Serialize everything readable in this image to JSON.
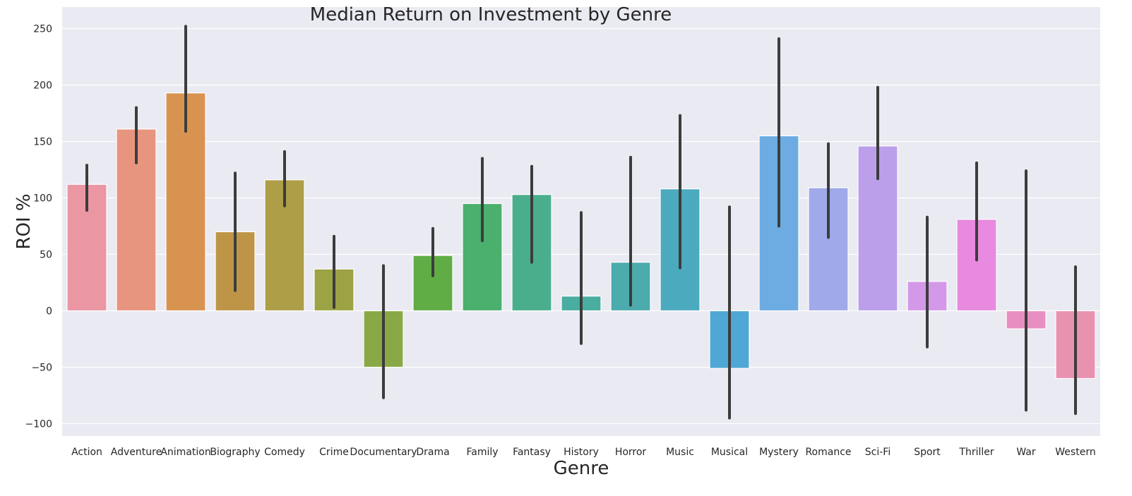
{
  "chart_data": {
    "type": "bar",
    "title": "Median Return on Investment by Genre",
    "xlabel": "Genre",
    "ylabel": "ROI %",
    "ylim": [
      -112,
      270
    ],
    "yticks": [
      250,
      200,
      150,
      100,
      50,
      0,
      -50,
      -100
    ],
    "grid": true,
    "legend": "none",
    "categories": [
      "Action",
      "Adventure",
      "Animation",
      "Biography",
      "Comedy",
      "Crime",
      "Documentary",
      "Drama",
      "Family",
      "Fantasy",
      "History",
      "Horror",
      "Music",
      "Musical",
      "Mystery",
      "Romance",
      "Sci-Fi",
      "Sport",
      "Thriller",
      "War",
      "Western"
    ],
    "values": [
      112,
      161,
      193,
      70,
      116,
      37,
      -50,
      49,
      95,
      103,
      13,
      43,
      108,
      -51,
      155,
      109,
      146,
      26,
      81,
      -16,
      -60
    ],
    "error_low": [
      89,
      131,
      159,
      18,
      93,
      3,
      -77,
      31,
      62,
      43,
      -29,
      5,
      38,
      -95,
      75,
      65,
      117,
      -32,
      45,
      -88,
      -91
    ],
    "error_high": [
      129,
      180,
      252,
      122,
      141,
      66,
      40,
      73,
      135,
      128,
      87,
      136,
      173,
      92,
      241,
      148,
      198,
      83,
      131,
      124,
      39
    ],
    "colors": [
      "#ea96a3",
      "#e8957f",
      "#d89350",
      "#be9547",
      "#ad9e47",
      "#9ba344",
      "#88a946",
      "#60ad46",
      "#4baf6d",
      "#4aae8c",
      "#49ad9f",
      "#4babad",
      "#4caabe",
      "#4ea7d4",
      "#6cace3",
      "#a0a9e9",
      "#bb9fea",
      "#d498e9",
      "#e78ae0",
      "#e88fc2",
      "#e992b0"
    ],
    "error_color": "#3c3c3c"
  }
}
